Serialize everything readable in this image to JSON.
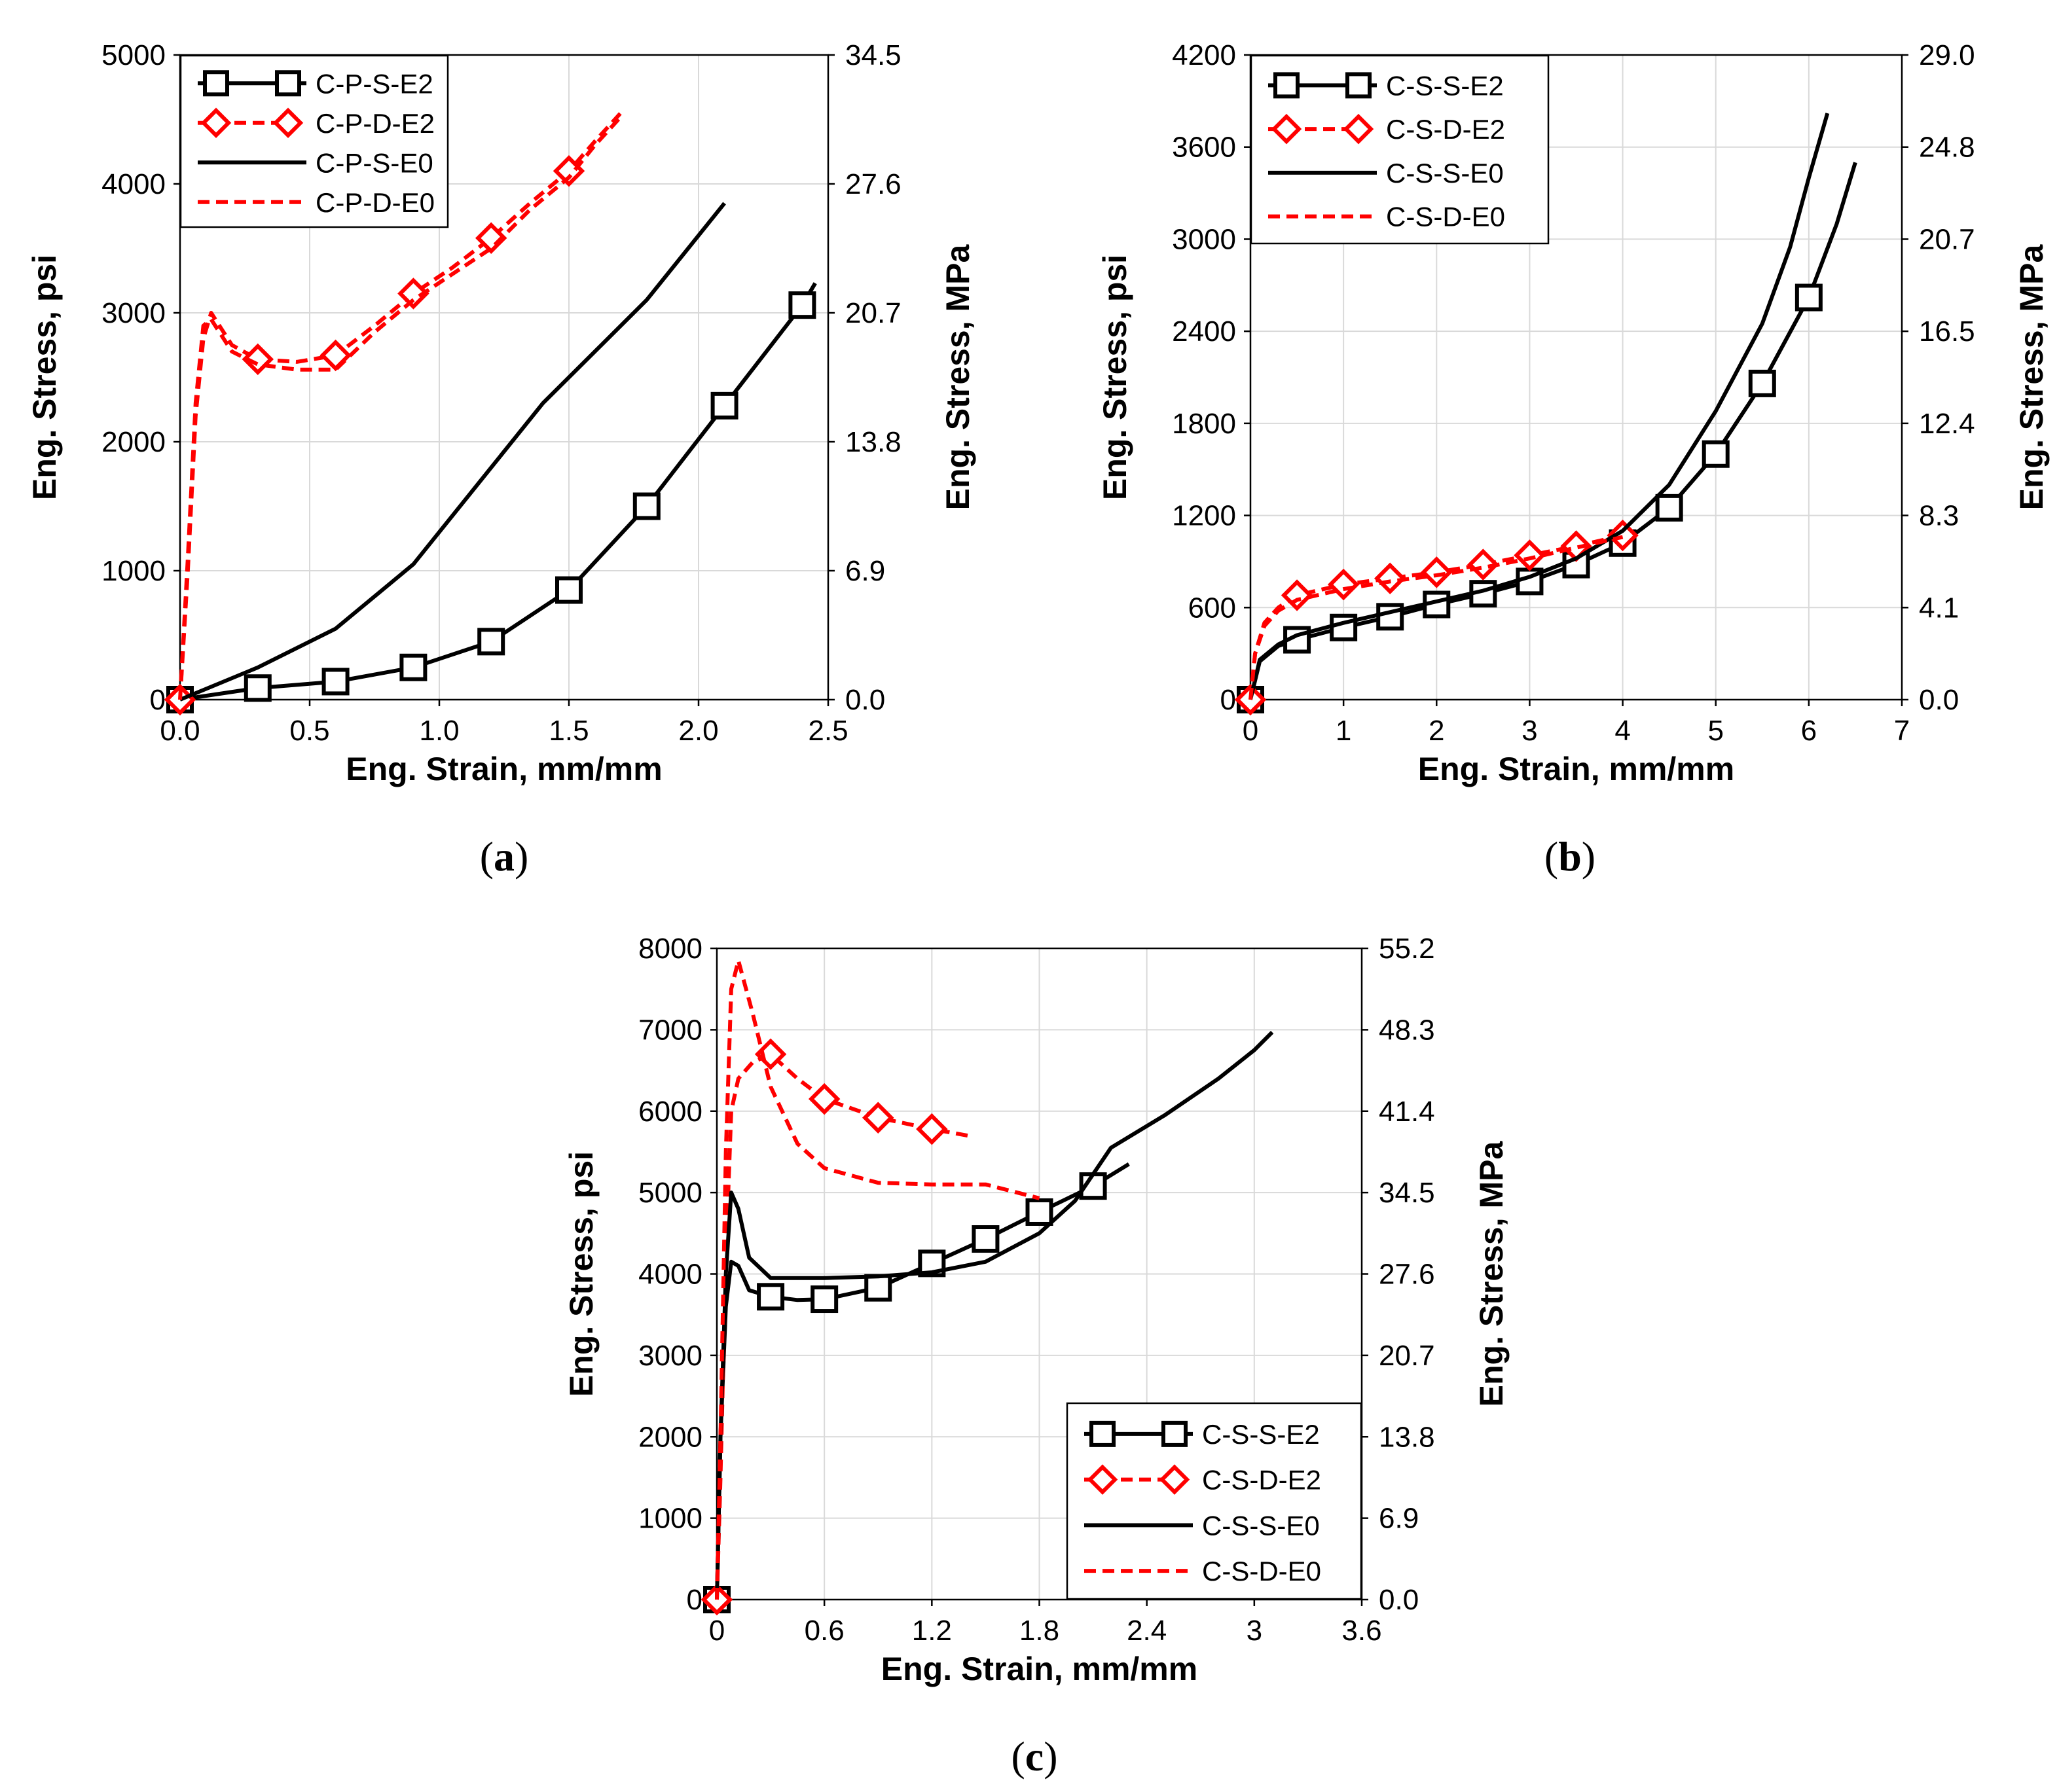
{
  "colors": {
    "black": "#000000",
    "red": "#ff0000",
    "grid": "#d9d9d9"
  },
  "chart_data": [
    {
      "id": "a",
      "type": "line",
      "caption_open": "(",
      "caption": "a",
      "caption_close": ")",
      "xlabel": "Eng. Strain, mm/mm",
      "ylabel": "Eng. Stress, psi",
      "y2label": "Eng. Stress, MPa",
      "xlim": [
        0,
        2.5
      ],
      "ylim": [
        0,
        5000
      ],
      "xticks": [
        "0.0",
        "0.5",
        "1.0",
        "1.5",
        "2.0",
        "2.5"
      ],
      "xtick_values": [
        0,
        0.5,
        1.0,
        1.5,
        2.0,
        2.5
      ],
      "yticks": [
        "0",
        "1000",
        "2000",
        "3000",
        "4000",
        "5000"
      ],
      "ytick_values": [
        0,
        1000,
        2000,
        3000,
        4000,
        5000
      ],
      "y2ticks": [
        "0.0",
        "6.9",
        "13.8",
        "20.7",
        "27.6",
        "34.5"
      ],
      "legend_position": "top-left",
      "series": [
        {
          "name": "C-P-S-E2",
          "color": "#000000",
          "style": "solid",
          "marker": "square",
          "x": [
            0,
            0.3,
            0.6,
            0.9,
            1.2,
            1.5,
            1.8,
            2.1,
            2.4,
            2.45
          ],
          "y": [
            0,
            90,
            140,
            250,
            450,
            850,
            1500,
            2280,
            3060,
            3230
          ],
          "marker_x": [
            0,
            0.3,
            0.6,
            0.9,
            1.2,
            1.5,
            1.8,
            2.1,
            2.4
          ],
          "marker_y": [
            0,
            90,
            140,
            250,
            450,
            850,
            1500,
            2280,
            3060
          ]
        },
        {
          "name": "C-P-D-E2",
          "color": "#ff0000",
          "style": "dashed",
          "marker": "diamond",
          "x": [
            0,
            0.03,
            0.06,
            0.09,
            0.12,
            0.2,
            0.3,
            0.45,
            0.6,
            0.75,
            0.9,
            1.05,
            1.2,
            1.35,
            1.5,
            1.6,
            1.7
          ],
          "y": [
            0,
            1000,
            2200,
            2800,
            3000,
            2750,
            2640,
            2620,
            2670,
            2900,
            3150,
            3350,
            3580,
            3850,
            4100,
            4330,
            4550
          ],
          "marker_x": [
            0,
            0.3,
            0.6,
            0.9,
            1.2,
            1.5
          ],
          "marker_y": [
            0,
            2640,
            2670,
            3150,
            3580,
            4100
          ]
        },
        {
          "name": "C-P-S-E0",
          "color": "#000000",
          "style": "solid",
          "marker": "none",
          "x": [
            0,
            0.3,
            0.6,
            0.9,
            1.2,
            1.4,
            1.6,
            1.8,
            2.1
          ],
          "y": [
            0,
            250,
            550,
            1050,
            1800,
            2300,
            2700,
            3100,
            3850
          ]
        },
        {
          "name": "C-P-D-E0",
          "color": "#ff0000",
          "style": "dashed",
          "marker": "none",
          "x": [
            0,
            0.03,
            0.06,
            0.09,
            0.12,
            0.2,
            0.3,
            0.45,
            0.6,
            0.75,
            0.9,
            1.05,
            1.2,
            1.35,
            1.5,
            1.6,
            1.7
          ],
          "y": [
            0,
            1100,
            2300,
            2900,
            2950,
            2700,
            2600,
            2560,
            2560,
            2850,
            3100,
            3300,
            3500,
            3800,
            4050,
            4300,
            4520
          ]
        }
      ]
    },
    {
      "id": "b",
      "type": "line",
      "caption_open": "(",
      "caption": "b",
      "caption_close": ")",
      "xlabel": "Eng. Strain, mm/mm",
      "ylabel": "Eng. Stress, psi",
      "y2label": "Eng. Stress, MPa",
      "xlim": [
        0,
        7
      ],
      "ylim": [
        0,
        4200
      ],
      "xticks": [
        "0",
        "1",
        "2",
        "3",
        "4",
        "5",
        "6",
        "7"
      ],
      "xtick_values": [
        0,
        1,
        2,
        3,
        4,
        5,
        6,
        7
      ],
      "yticks": [
        "0",
        "600",
        "1200",
        "1800",
        "2400",
        "3000",
        "3600",
        "4200"
      ],
      "ytick_values": [
        0,
        600,
        1200,
        1800,
        2400,
        3000,
        3600,
        4200
      ],
      "y2ticks": [
        "0.0",
        "4.1",
        "8.3",
        "12.4",
        "16.5",
        "20.7",
        "24.8",
        "29.0"
      ],
      "legend_position": "top-left",
      "series": [
        {
          "name": "C-S-S-E2",
          "color": "#000000",
          "style": "solid",
          "marker": "square",
          "x": [
            0,
            0.1,
            0.3,
            0.5,
            1.0,
            1.5,
            2.0,
            2.5,
            3.0,
            3.5,
            4.0,
            4.5,
            5.0,
            5.5,
            6.0,
            6.3,
            6.5
          ],
          "y": [
            0,
            250,
            350,
            390,
            470,
            540,
            620,
            690,
            770,
            880,
            1020,
            1250,
            1600,
            2060,
            2620,
            3100,
            3500
          ],
          "marker_x": [
            0,
            0.5,
            1.0,
            1.5,
            2.0,
            2.5,
            3.0,
            3.5,
            4.0,
            4.5,
            5.0,
            5.5,
            6.0
          ],
          "marker_y": [
            0,
            390,
            470,
            540,
            620,
            690,
            770,
            880,
            1020,
            1250,
            1600,
            2060,
            2620
          ]
        },
        {
          "name": "C-S-D-E2",
          "color": "#ff0000",
          "style": "dashed",
          "marker": "diamond",
          "x": [
            0,
            0.05,
            0.15,
            0.3,
            0.5,
            1.0,
            1.5,
            2.0,
            2.5,
            3.0,
            3.5,
            4.0
          ],
          "y": [
            0,
            300,
            500,
            600,
            680,
            750,
            790,
            830,
            880,
            940,
            1000,
            1070
          ],
          "marker_x": [
            0,
            0.5,
            1.0,
            1.5,
            2.0,
            2.5,
            3.0,
            3.5,
            4.0
          ],
          "marker_y": [
            0,
            680,
            750,
            790,
            830,
            880,
            940,
            1000,
            1070
          ]
        },
        {
          "name": "C-S-S-E0",
          "color": "#000000",
          "style": "solid",
          "marker": "none",
          "x": [
            0,
            0.1,
            0.3,
            0.5,
            1.0,
            1.5,
            2.0,
            2.5,
            3.0,
            3.5,
            4.0,
            4.5,
            5.0,
            5.5,
            5.8,
            6.0,
            6.2
          ],
          "y": [
            0,
            260,
            360,
            420,
            500,
            570,
            640,
            710,
            800,
            920,
            1100,
            1400,
            1880,
            2450,
            2950,
            3400,
            3820
          ]
        },
        {
          "name": "C-S-D-E0",
          "color": "#ff0000",
          "style": "dashed",
          "marker": "none",
          "x": [
            0,
            0.05,
            0.15,
            0.3,
            0.5,
            1.0,
            1.5,
            2.0,
            2.5,
            3.0,
            3.5,
            4.0
          ],
          "y": [
            0,
            300,
            480,
            580,
            650,
            720,
            770,
            810,
            860,
            920,
            990,
            1060
          ]
        }
      ]
    },
    {
      "id": "c",
      "type": "line",
      "caption_open": "(",
      "caption": "c",
      "caption_close": ")",
      "xlabel": "Eng. Strain, mm/mm",
      "ylabel": "Eng. Stress, psi",
      "y2label": "Eng. Stress, MPa",
      "xlim": [
        0,
        3.6
      ],
      "ylim": [
        0,
        8000
      ],
      "xticks": [
        "0",
        "0.6",
        "1.2",
        "1.8",
        "2.4",
        "3",
        "3.6"
      ],
      "xtick_values": [
        0,
        0.6,
        1.2,
        1.8,
        2.4,
        3.0,
        3.6
      ],
      "yticks": [
        "0",
        "1000",
        "2000",
        "3000",
        "4000",
        "5000",
        "6000",
        "7000",
        "8000"
      ],
      "ytick_values": [
        0,
        1000,
        2000,
        3000,
        4000,
        5000,
        6000,
        7000,
        8000
      ],
      "y2ticks": [
        "0.0",
        "6.9",
        "13.8",
        "20.7",
        "27.6",
        "34.5",
        "41.4",
        "48.3",
        "55.2"
      ],
      "legend_position": "bottom-right",
      "series": [
        {
          "name": "C-S-S-E2",
          "color": "#000000",
          "style": "solid",
          "marker": "square",
          "x": [
            0,
            0.02,
            0.05,
            0.08,
            0.12,
            0.18,
            0.3,
            0.45,
            0.6,
            0.9,
            1.2,
            1.5,
            1.8,
            2.1,
            2.3
          ],
          "y": [
            0,
            2000,
            3600,
            4150,
            4100,
            3800,
            3720,
            3680,
            3690,
            3830,
            4130,
            4430,
            4760,
            5080,
            5350
          ],
          "marker_x": [
            0,
            0.3,
            0.6,
            0.9,
            1.2,
            1.5,
            1.8,
            2.1
          ],
          "marker_y": [
            0,
            3720,
            3690,
            3830,
            4130,
            4430,
            4760,
            5080
          ]
        },
        {
          "name": "C-S-D-E2",
          "color": "#ff0000",
          "style": "dashed",
          "marker": "diamond",
          "x": [
            0,
            0.02,
            0.05,
            0.08,
            0.12,
            0.2,
            0.3,
            0.45,
            0.6,
            0.9,
            1.2,
            1.4
          ],
          "y": [
            0,
            1500,
            4200,
            6000,
            6400,
            6600,
            6700,
            6400,
            6150,
            5920,
            5780,
            5700
          ],
          "marker_x": [
            0,
            0.3,
            0.6,
            0.9,
            1.2
          ],
          "marker_y": [
            0,
            6700,
            6150,
            5920,
            5780
          ]
        },
        {
          "name": "C-S-S-E0",
          "color": "#000000",
          "style": "solid",
          "marker": "none",
          "x": [
            0,
            0.02,
            0.05,
            0.08,
            0.12,
            0.18,
            0.3,
            0.6,
            0.9,
            1.2,
            1.5,
            1.8,
            2.0,
            2.2,
            2.5,
            2.8,
            3.0,
            3.1
          ],
          "y": [
            0,
            2000,
            4000,
            5000,
            4800,
            4200,
            3950,
            3950,
            3970,
            4020,
            4150,
            4500,
            4900,
            5550,
            5950,
            6400,
            6750,
            6970
          ]
        },
        {
          "name": "C-S-D-E0",
          "color": "#ff0000",
          "style": "dashed",
          "marker": "none",
          "x": [
            0,
            0.02,
            0.05,
            0.08,
            0.12,
            0.2,
            0.3,
            0.45,
            0.6,
            0.9,
            1.2,
            1.5,
            1.8
          ],
          "y": [
            0,
            2000,
            5500,
            7500,
            7850,
            7200,
            6300,
            5600,
            5300,
            5120,
            5100,
            5100,
            4930
          ]
        }
      ]
    }
  ]
}
